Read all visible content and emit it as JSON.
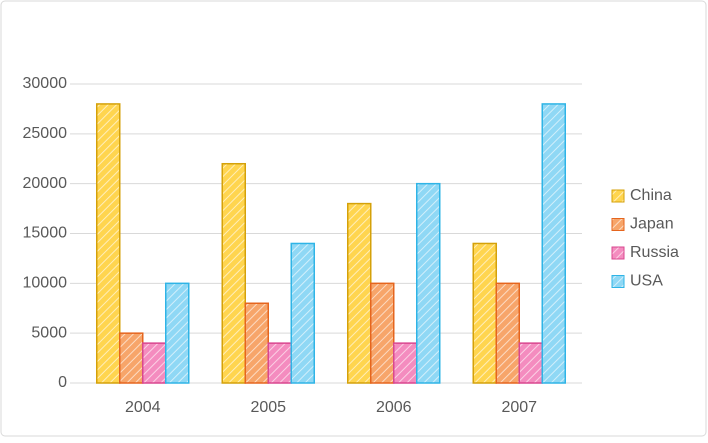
{
  "chart_data": {
    "type": "bar",
    "categories": [
      "2004",
      "2005",
      "2006",
      "2007"
    ],
    "series": [
      {
        "name": "China",
        "color": "#ffd54f",
        "edge_color": "#d4a10a",
        "values": [
          28000,
          22000,
          18000,
          14000
        ]
      },
      {
        "name": "Japan",
        "color": "#f7a56a",
        "edge_color": "#e5651e",
        "values": [
          5000,
          8000,
          10000,
          10000
        ]
      },
      {
        "name": "Russia",
        "color": "#f48cbf",
        "edge_color": "#d9478f",
        "values": [
          4000,
          4000,
          4000,
          4000
        ]
      },
      {
        "name": "USA",
        "color": "#8fd8f5",
        "edge_color": "#2fb4e6",
        "values": [
          10000,
          14000,
          20000,
          28000
        ]
      }
    ],
    "ylim": [
      0,
      30000
    ],
    "yticks": [
      0,
      5000,
      10000,
      15000,
      20000,
      25000,
      30000
    ],
    "grid": true,
    "legend": "right",
    "hatch": true
  }
}
